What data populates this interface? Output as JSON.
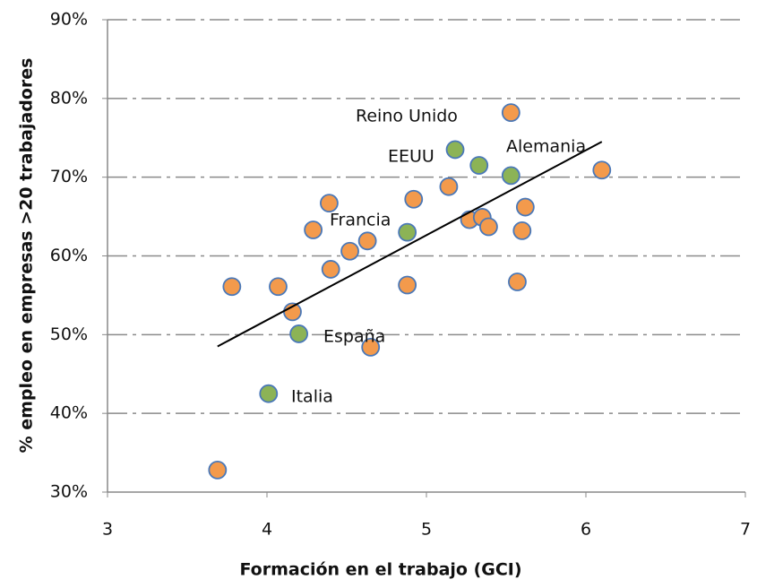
{
  "chart_data": {
    "type": "scatter",
    "xlabel": "Formación en el trabajo (GCI)",
    "ylabel": "% empleo en empresas >20 trabajadores",
    "xlim": [
      3,
      7
    ],
    "xticks": [
      3,
      4,
      5,
      6,
      7
    ],
    "ylim": [
      30,
      90
    ],
    "yticks": [
      {
        "value": 30,
        "label": "30%"
      },
      {
        "value": 40,
        "label": "40%"
      },
      {
        "value": 50,
        "label": "50%"
      },
      {
        "value": 60,
        "label": "60%"
      },
      {
        "value": 70,
        "label": "70%"
      },
      {
        "value": 80,
        "label": "80%"
      },
      {
        "value": 90,
        "label": "90%"
      }
    ],
    "grid": true,
    "series": [
      {
        "color": "#f39a4c",
        "x": [
          3.69,
          3.78,
          4.07,
          4.16,
          4.29,
          4.39,
          4.4,
          4.52,
          4.63,
          4.65,
          4.88,
          4.92,
          5.14,
          5.27,
          5.35,
          5.39,
          5.53,
          5.62,
          5.6,
          5.57,
          6.1
        ],
        "values": [
          32.8,
          56.1,
          56.1,
          52.9,
          63.3,
          66.7,
          58.3,
          60.6,
          61.9,
          48.4,
          56.3,
          67.2,
          68.8,
          64.6,
          64.9,
          63.7,
          78.2,
          66.2,
          63.2,
          56.7,
          70.9
        ]
      },
      {
        "color": "#8cb356",
        "x": [
          5.18,
          5.33,
          5.53,
          4.88,
          4.2,
          4.01
        ],
        "values": [
          73.5,
          71.5,
          70.2,
          63.0,
          50.1,
          42.5
        ]
      }
    ],
    "trendline": {
      "color": "#000000",
      "x": [
        3.69,
        6.1
      ],
      "values": [
        48.5,
        74.5
      ]
    },
    "annotations": [
      "Reino Unido",
      "EEUU",
      "Alemania",
      "Francia",
      "España",
      "Italia"
    ]
  }
}
